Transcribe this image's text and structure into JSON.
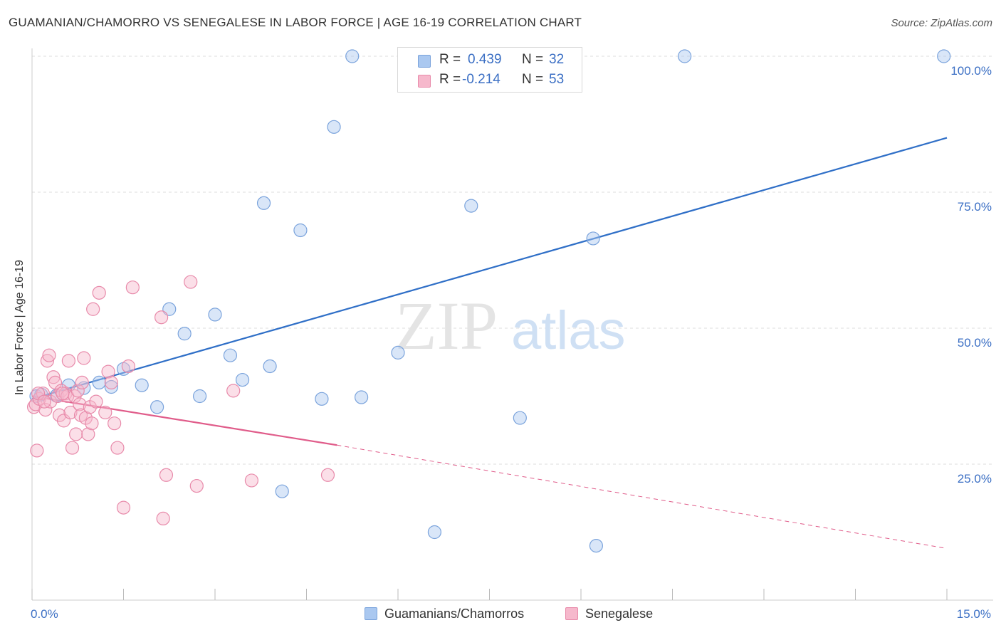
{
  "title": "GUAMANIAN/CHAMORRO VS SENEGALESE IN LABOR FORCE | AGE 16-19 CORRELATION CHART",
  "source": "Source: ZipAtlas.com",
  "watermark": {
    "zip": "ZIP",
    "atlas": "atlas"
  },
  "colors": {
    "blue_fill": "#aac8f0",
    "blue_stroke": "#7aa3dc",
    "blue_line": "#2f6fc7",
    "pink_fill": "#f6b8cc",
    "pink_stroke": "#e88aaa",
    "pink_line": "#e05c8a",
    "axis_text": "#3b6fc4",
    "grid": "#dddddd"
  },
  "legend_top": [
    {
      "r_label": "R =",
      "r_value": "0.439",
      "n_label": "N =",
      "n_value": "32",
      "color": "blue"
    },
    {
      "r_label": "R =",
      "r_value": "-0.214",
      "n_label": "N =",
      "n_value": "53",
      "color": "pink"
    }
  ],
  "chart_data": {
    "type": "scatter",
    "title": "GUAMANIAN/CHAMORRO VS SENEGALESE IN LABOR FORCE | AGE 16-19 CORRELATION CHART",
    "xlabel": "",
    "ylabel": "In Labor Force | Age 16-19",
    "xlim": [
      0,
      15
    ],
    "ylim": [
      0,
      102
    ],
    "x_tick_labels": [
      {
        "value": 0,
        "label": "0.0%"
      },
      {
        "value": 15,
        "label": "15.0%"
      }
    ],
    "y_tick_labels": [
      {
        "value": 25,
        "label": "25.0%"
      },
      {
        "value": 50,
        "label": "50.0%"
      },
      {
        "value": 75,
        "label": "75.0%"
      },
      {
        "value": 100,
        "label": "100.0%"
      }
    ],
    "grid": true,
    "legend_position": "bottom",
    "series": [
      {
        "name": "Guamanians/Chamorros",
        "color": "blue",
        "points": [
          [
            0.07,
            37.5
          ],
          [
            0.15,
            37.8
          ],
          [
            0.4,
            37.6
          ],
          [
            0.6,
            39.5
          ],
          [
            0.85,
            39.0
          ],
          [
            1.1,
            40.0
          ],
          [
            1.3,
            39.2
          ],
          [
            1.5,
            42.5
          ],
          [
            1.8,
            39.5
          ],
          [
            2.05,
            35.5
          ],
          [
            2.25,
            53.5
          ],
          [
            2.5,
            49.0
          ],
          [
            2.75,
            37.5
          ],
          [
            3.0,
            52.5
          ],
          [
            3.25,
            45.0
          ],
          [
            3.45,
            40.5
          ],
          [
            3.8,
            73.0
          ],
          [
            3.9,
            43.0
          ],
          [
            4.1,
            20.0
          ],
          [
            4.4,
            68.0
          ],
          [
            4.75,
            37.0
          ],
          [
            4.95,
            87.0
          ],
          [
            5.25,
            100.0
          ],
          [
            5.4,
            37.3
          ],
          [
            6.0,
            45.5
          ],
          [
            6.6,
            12.5
          ],
          [
            7.2,
            72.5
          ],
          [
            8.0,
            33.5
          ],
          [
            9.2,
            66.5
          ],
          [
            9.25,
            10.0
          ],
          [
            10.7,
            100.0
          ],
          [
            14.95,
            100.0
          ]
        ]
      },
      {
        "name": "Senegalese",
        "color": "pink",
        "points": [
          [
            0.03,
            35.5
          ],
          [
            0.06,
            36.0
          ],
          [
            0.08,
            27.5
          ],
          [
            0.12,
            37.0
          ],
          [
            0.18,
            38.0
          ],
          [
            0.22,
            35.0
          ],
          [
            0.25,
            44.0
          ],
          [
            0.28,
            45.0
          ],
          [
            0.3,
            36.5
          ],
          [
            0.35,
            41.0
          ],
          [
            0.38,
            40.0
          ],
          [
            0.42,
            37.5
          ],
          [
            0.45,
            34.0
          ],
          [
            0.48,
            38.5
          ],
          [
            0.52,
            33.0
          ],
          [
            0.55,
            38.0
          ],
          [
            0.58,
            37.5
          ],
          [
            0.6,
            44.0
          ],
          [
            0.63,
            34.5
          ],
          [
            0.66,
            28.0
          ],
          [
            0.7,
            37.5
          ],
          [
            0.72,
            30.5
          ],
          [
            0.75,
            38.5
          ],
          [
            0.78,
            36.0
          ],
          [
            0.8,
            34.0
          ],
          [
            0.82,
            40.0
          ],
          [
            0.85,
            44.5
          ],
          [
            0.88,
            33.5
          ],
          [
            0.92,
            30.5
          ],
          [
            0.95,
            35.5
          ],
          [
            0.98,
            32.5
          ],
          [
            1.0,
            53.5
          ],
          [
            1.05,
            36.5
          ],
          [
            1.1,
            56.5
          ],
          [
            1.2,
            34.5
          ],
          [
            1.25,
            42.0
          ],
          [
            1.3,
            40.0
          ],
          [
            1.35,
            32.5
          ],
          [
            1.4,
            28.0
          ],
          [
            1.5,
            17.0
          ],
          [
            1.58,
            43.0
          ],
          [
            1.65,
            57.5
          ],
          [
            2.12,
            52.0
          ],
          [
            2.15,
            15.0
          ],
          [
            2.2,
            23.0
          ],
          [
            2.6,
            58.5
          ],
          [
            2.7,
            21.0
          ],
          [
            3.3,
            38.5
          ],
          [
            3.6,
            22.0
          ],
          [
            4.85,
            23.0
          ],
          [
            0.1,
            38.0
          ],
          [
            0.2,
            36.5
          ],
          [
            0.5,
            38.0
          ]
        ]
      }
    ],
    "trend_lines": [
      {
        "series": "Guamanians/Chamorros",
        "from": [
          0.0,
          37.0
        ],
        "to": [
          15.0,
          85.0
        ],
        "style": "solid"
      },
      {
        "series": "Senegalese",
        "from": [
          0.0,
          37.5
        ],
        "to": [
          5.0,
          28.5
        ],
        "style": "solid"
      },
      {
        "series": "Senegalese",
        "from": [
          5.0,
          28.5
        ],
        "to": [
          15.0,
          9.5
        ],
        "style": "dashed"
      }
    ]
  }
}
